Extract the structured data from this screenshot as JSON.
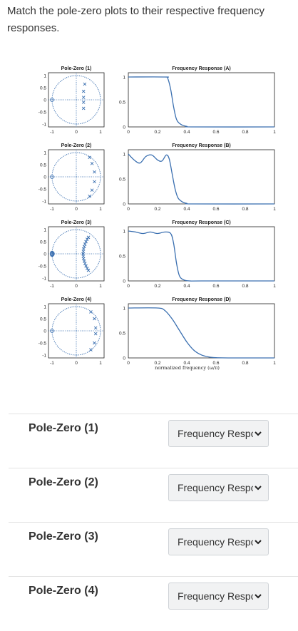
{
  "question": {
    "text": "Match the pole-zero plots to their respective frequency responses."
  },
  "figure": {
    "pz_plots": [
      {
        "title": "Pole-Zero (1)"
      },
      {
        "title": "Pole-Zero (2)"
      },
      {
        "title": "Pole-Zero (3)"
      },
      {
        "title": "Pole-Zero (4)"
      }
    ],
    "freq_plots": [
      {
        "title": "Frequency Response (A)"
      },
      {
        "title": "Frequency Response (B)"
      },
      {
        "title": "Frequency Response (C)"
      },
      {
        "title": "Frequency Response (D)"
      }
    ],
    "pz_y_ticks": [
      "1",
      "0.5",
      "0",
      "-0.5",
      "-1"
    ],
    "pz_x_ticks": [
      "-1",
      "0",
      "1"
    ],
    "fr_y_ticks": [
      "1",
      "0.5",
      "0"
    ],
    "fr_x_ticks": [
      "0",
      "0.2",
      "0.4",
      "0.6",
      "0.8",
      "1"
    ],
    "fr_xlabel": "normalized frequency (ω/π)"
  },
  "chart_data": [
    {
      "type": "line",
      "title": "Frequency Response (A)",
      "xlabel": "",
      "ylabel": "",
      "xlim": [
        0,
        1
      ],
      "ylim": [
        0,
        1
      ],
      "x": [
        0,
        0.25,
        0.27,
        0.29,
        0.31,
        0.33,
        0.36,
        0.4,
        0.45,
        1
      ],
      "y": [
        1,
        1,
        0.97,
        0.75,
        0.4,
        0.15,
        0.05,
        0.01,
        0,
        0
      ]
    },
    {
      "type": "line",
      "title": "Frequency Response (B)",
      "xlabel": "",
      "ylabel": "",
      "xlim": [
        0,
        1
      ],
      "ylim": [
        0,
        1
      ],
      "x": [
        0,
        0.04,
        0.08,
        0.12,
        0.16,
        0.2,
        0.23,
        0.26,
        0.28,
        0.3,
        0.32,
        0.34,
        0.37,
        0.4,
        0.45,
        1
      ],
      "y": [
        1,
        0.88,
        0.82,
        0.95,
        0.98,
        0.88,
        0.86,
        0.98,
        0.9,
        0.6,
        0.3,
        0.12,
        0.04,
        0.01,
        0,
        0
      ]
    },
    {
      "type": "line",
      "title": "Frequency Response (C)",
      "xlabel": "",
      "ylabel": "",
      "xlim": [
        0,
        1
      ],
      "ylim": [
        0,
        1
      ],
      "x": [
        0,
        0.05,
        0.1,
        0.15,
        0.2,
        0.25,
        0.29,
        0.31,
        0.33,
        0.35,
        0.38,
        0.42,
        0.5,
        1
      ],
      "y": [
        1,
        0.98,
        0.95,
        0.98,
        0.95,
        0.98,
        0.95,
        0.75,
        0.35,
        0.1,
        0.02,
        0,
        0,
        0
      ]
    },
    {
      "type": "line",
      "title": "Frequency Response (D)",
      "xlabel": "normalized frequency (ω/π)",
      "ylabel": "",
      "xlim": [
        0,
        1
      ],
      "ylim": [
        0,
        1
      ],
      "x": [
        0,
        0.2,
        0.25,
        0.3,
        0.35,
        0.4,
        0.45,
        0.5,
        0.55,
        0.6,
        0.7,
        1
      ],
      "y": [
        1,
        1,
        0.95,
        0.78,
        0.55,
        0.32,
        0.15,
        0.06,
        0.02,
        0.005,
        0,
        0
      ]
    }
  ],
  "pz_data": [
    {
      "zeros": [
        [
          -1,
          0
        ]
      ],
      "poles": [
        [
          0.35,
          0.65
        ],
        [
          0.3,
          0.35
        ],
        [
          0.3,
          0.1
        ],
        [
          0.3,
          -0.1
        ],
        [
          0.3,
          -0.35
        ]
      ]
    },
    {
      "zeros": [
        [
          -1,
          0
        ]
      ],
      "poles": [
        [
          0.55,
          0.8
        ],
        [
          0.65,
          0.55
        ],
        [
          0.75,
          0.2
        ],
        [
          0.75,
          -0.2
        ],
        [
          0.65,
          -0.55
        ],
        [
          0.55,
          -0.8
        ]
      ]
    },
    {
      "zeros": [
        [
          -1,
          0
        ],
        [
          -1,
          0.04
        ],
        [
          -1,
          -0.04
        ],
        [
          -0.98,
          0.02
        ],
        [
          -0.98,
          -0.02
        ]
      ],
      "poles": [
        [
          0.5,
          0.68
        ],
        [
          0.45,
          0.6
        ],
        [
          0.4,
          0.5
        ],
        [
          0.36,
          0.4
        ],
        [
          0.33,
          0.3
        ],
        [
          0.3,
          0.2
        ],
        [
          0.29,
          0.1
        ],
        [
          0.28,
          0
        ],
        [
          0.29,
          -0.1
        ],
        [
          0.3,
          -0.2
        ],
        [
          0.33,
          -0.3
        ],
        [
          0.36,
          -0.4
        ],
        [
          0.4,
          -0.5
        ],
        [
          0.45,
          -0.6
        ],
        [
          0.5,
          -0.68
        ]
      ]
    },
    {
      "zeros": [
        [
          -1,
          0
        ]
      ],
      "poles": [
        [
          0.6,
          0.78
        ],
        [
          0.75,
          0.5
        ],
        [
          0.8,
          0.12
        ],
        [
          0.8,
          -0.12
        ],
        [
          0.75,
          -0.5
        ],
        [
          0.6,
          -0.78
        ]
      ]
    }
  ],
  "colors": {
    "line": "#3a6fb0",
    "marker": "#3a6fb0",
    "dots": "#3a6fb0"
  },
  "matches": [
    {
      "label": "Pole-Zero (1)",
      "selected": "Frequency Response"
    },
    {
      "label": "Pole-Zero (2)",
      "selected": "Frequency Response"
    },
    {
      "label": "Pole-Zero (3)",
      "selected": "Frequency Response"
    },
    {
      "label": "Pole-Zero (4)",
      "selected": "Frequency Response"
    }
  ]
}
